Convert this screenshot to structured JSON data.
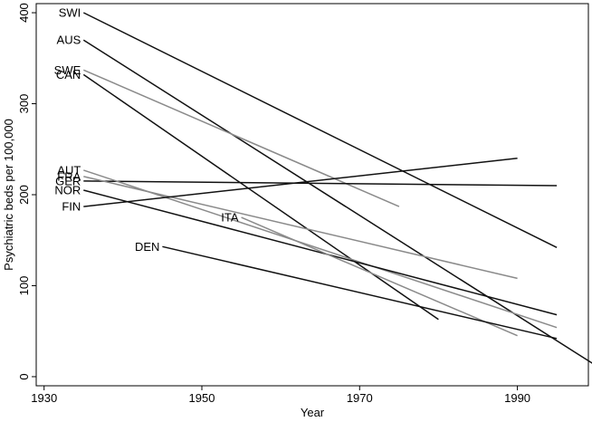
{
  "chart_data": {
    "type": "line",
    "title": "",
    "xlabel": "Year",
    "ylabel": "Psychiatric beds per 100,000",
    "xlim": [
      1929,
      1999
    ],
    "ylim": [
      -10,
      410
    ],
    "xticks": [
      1930,
      1950,
      1970,
      1990
    ],
    "yticks": [
      0,
      100,
      200,
      300,
      400
    ],
    "grid": false,
    "legend": "none",
    "series": [
      {
        "name": "SWI",
        "color": "#111111",
        "x": [
          1935,
          1995
        ],
        "y": [
          400,
          142
        ]
      },
      {
        "name": "AUS",
        "color": "#111111",
        "x": [
          1935,
          2000
        ],
        "y": [
          370,
          12
        ]
      },
      {
        "name": "SWE",
        "color": "#8a8a8a",
        "x": [
          1935,
          1975
        ],
        "y": [
          337,
          187
        ]
      },
      {
        "name": "CAN",
        "color": "#111111",
        "x": [
          1935,
          1980
        ],
        "y": [
          332,
          63
        ]
      },
      {
        "name": "GER",
        "color": "#111111",
        "x": [
          1935,
          1995
        ],
        "y": [
          215,
          210
        ]
      },
      {
        "name": "AUT",
        "color": "#8a8a8a",
        "x": [
          1935,
          1995
        ],
        "y": [
          227,
          54
        ]
      },
      {
        "name": "FRA",
        "color": "#8a8a8a",
        "x": [
          1935,
          1990
        ],
        "y": [
          220,
          108
        ]
      },
      {
        "name": "NOR",
        "color": "#111111",
        "x": [
          1935,
          1995
        ],
        "y": [
          205,
          68
        ]
      },
      {
        "name": "FIN",
        "color": "#111111",
        "x": [
          1935,
          1990
        ],
        "y": [
          187,
          240
        ]
      },
      {
        "name": "ITA",
        "color": "#8a8a8a",
        "x": [
          1955,
          1990
        ],
        "y": [
          175,
          45
        ]
      },
      {
        "name": "DEN",
        "color": "#111111",
        "x": [
          1945,
          1995
        ],
        "y": [
          143,
          42
        ]
      }
    ]
  }
}
